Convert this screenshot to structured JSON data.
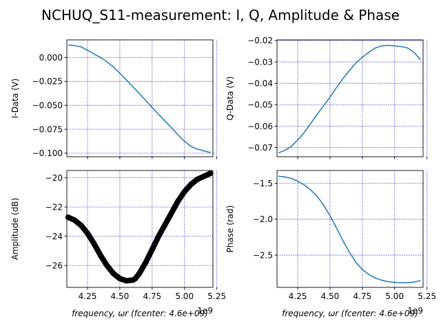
{
  "figure": {
    "title": "NCHUQ_S11-measurement: I, Q, Amplitude & Phase"
  },
  "colors": {
    "line": "#1f77b4",
    "grid": "#0000cc",
    "amp_marker": "#000000"
  },
  "chart_data": [
    {
      "type": "line",
      "ylabel": "I-Data (V)",
      "xlabel": "",
      "xlim": [
        4.09,
        5.22
      ],
      "ylim": [
        -0.1037,
        0.0183
      ],
      "xticks": [
        4.25,
        4.5,
        4.75,
        5.0,
        5.25
      ],
      "xtick_labels": [
        "",
        "",
        "",
        "",
        ""
      ],
      "yticks": [
        0.0,
        -0.025,
        -0.05,
        -0.075,
        -0.1
      ],
      "ytick_labels": [
        "0.000",
        "−0.025",
        "−0.050",
        "−0.075",
        "−0.100"
      ],
      "grid": true,
      "series": [
        {
          "x": [
            4.1,
            4.15,
            4.2,
            4.25,
            4.3,
            4.35,
            4.4,
            4.45,
            4.5,
            4.55,
            4.6,
            4.65,
            4.7,
            4.75,
            4.8,
            4.85,
            4.9,
            4.95,
            5.0,
            5.05,
            5.1,
            5.15,
            5.2
          ],
          "y": [
            0.013,
            0.0123,
            0.011,
            0.0075,
            0.0035,
            0.0,
            -0.0045,
            -0.01,
            -0.0165,
            -0.0235,
            -0.0305,
            -0.0375,
            -0.0448,
            -0.0523,
            -0.0595,
            -0.0665,
            -0.0735,
            -0.0808,
            -0.0875,
            -0.093,
            -0.0958,
            -0.0975,
            -0.0993
          ]
        }
      ]
    },
    {
      "type": "line",
      "ylabel": "Q-Data (V)",
      "xlabel": "",
      "xlim": [
        4.09,
        5.22
      ],
      "ylim": [
        -0.0743,
        -0.0197
      ],
      "xticks": [
        4.25,
        4.5,
        4.75,
        5.0,
        5.25
      ],
      "xtick_labels": [
        "",
        "",
        "",
        "",
        ""
      ],
      "yticks": [
        -0.02,
        -0.03,
        -0.04,
        -0.05,
        -0.06,
        -0.07
      ],
      "ytick_labels": [
        "−0.02",
        "−0.03",
        "−0.04",
        "−0.05",
        "−0.06",
        "−0.07"
      ],
      "grid": true,
      "series": [
        {
          "x": [
            4.1,
            4.15,
            4.2,
            4.25,
            4.3,
            4.35,
            4.4,
            4.45,
            4.5,
            4.55,
            4.6,
            4.65,
            4.7,
            4.75,
            4.8,
            4.85,
            4.9,
            4.95,
            5.0,
            5.05,
            5.1,
            5.15,
            5.2
          ],
          "y": [
            -0.0725,
            -0.0713,
            -0.0695,
            -0.0665,
            -0.063,
            -0.0588,
            -0.0545,
            -0.0505,
            -0.0465,
            -0.042,
            -0.0378,
            -0.034,
            -0.0305,
            -0.0278,
            -0.0255,
            -0.0235,
            -0.0225,
            -0.0223,
            -0.0225,
            -0.0228,
            -0.0235,
            -0.0255,
            -0.029
          ]
        }
      ]
    },
    {
      "type": "scatter",
      "ylabel": "Amplitude (dB)",
      "xlabel": "frequency, ωr (fcenter: 4.6e+09)",
      "xlim": [
        4.09,
        5.22
      ],
      "ylim": [
        -27.5,
        -19.5
      ],
      "xticks": [
        4.25,
        4.5,
        4.75,
        5.0,
        5.25
      ],
      "xtick_labels": [
        "4.25",
        "4.50",
        "4.75",
        "5.00",
        "5.25"
      ],
      "x_offset_label": "1e9",
      "yticks": [
        -20,
        -22,
        -24,
        -26
      ],
      "ytick_labels": [
        "−20",
        "−22",
        "−24",
        "−26"
      ],
      "grid": true,
      "series": [
        {
          "x": [
            4.1,
            4.15,
            4.2,
            4.25,
            4.3,
            4.35,
            4.4,
            4.45,
            4.5,
            4.55,
            4.6,
            4.62,
            4.65,
            4.7,
            4.75,
            4.8,
            4.85,
            4.9,
            4.95,
            5.0,
            5.05,
            5.1,
            5.15,
            5.2
          ],
          "y": [
            -22.7,
            -22.9,
            -23.25,
            -23.8,
            -24.5,
            -25.3,
            -26.0,
            -26.55,
            -26.9,
            -27.05,
            -27.0,
            -26.9,
            -26.55,
            -25.8,
            -24.9,
            -24.0,
            -23.2,
            -22.4,
            -21.6,
            -20.95,
            -20.45,
            -20.1,
            -19.9,
            -19.7
          ]
        }
      ]
    },
    {
      "type": "line",
      "ylabel": "Phase (rad)",
      "xlabel": "frequency, ωr (fcenter: 4.6e+09)",
      "xlim": [
        4.09,
        5.22
      ],
      "ylim": [
        -2.95,
        -1.32
      ],
      "xticks": [
        4.25,
        4.5,
        4.75,
        5.0,
        5.25
      ],
      "xtick_labels": [
        "4.25",
        "4.50",
        "4.75",
        "5.00",
        "5.25"
      ],
      "x_offset_label": "1e9",
      "yticks": [
        -1.5,
        -2.0,
        -2.5
      ],
      "ytick_labels": [
        "−1.5",
        "−2.0",
        "−2.5"
      ],
      "grid": true,
      "series": [
        {
          "x": [
            4.1,
            4.15,
            4.2,
            4.25,
            4.3,
            4.35,
            4.4,
            4.45,
            4.5,
            4.55,
            4.6,
            4.65,
            4.7,
            4.75,
            4.8,
            4.85,
            4.9,
            4.95,
            5.0,
            5.05,
            5.1,
            5.15,
            5.2
          ],
          "y": [
            -1.4,
            -1.41,
            -1.43,
            -1.47,
            -1.52,
            -1.59,
            -1.68,
            -1.8,
            -1.95,
            -2.12,
            -2.3,
            -2.46,
            -2.6,
            -2.7,
            -2.77,
            -2.82,
            -2.85,
            -2.87,
            -2.88,
            -2.885,
            -2.885,
            -2.875,
            -2.855
          ]
        }
      ]
    }
  ]
}
